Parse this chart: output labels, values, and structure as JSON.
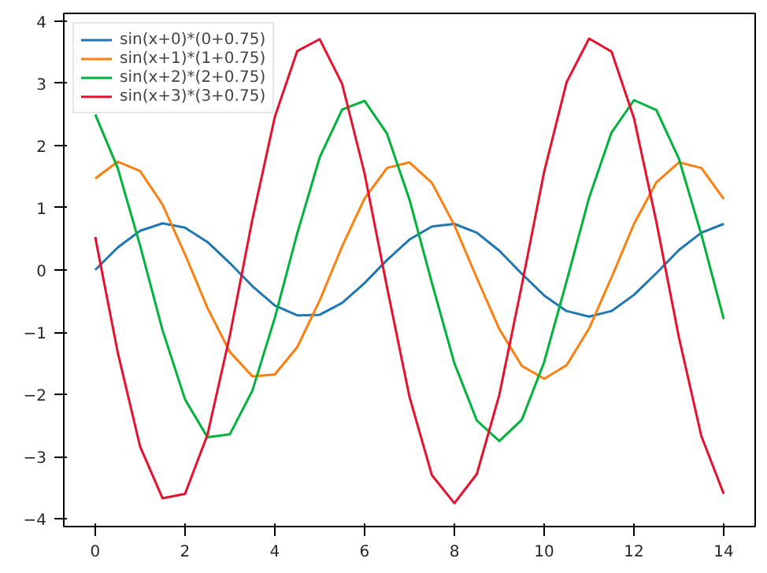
{
  "chart_data": {
    "type": "line",
    "x": [
      0,
      0.5,
      1,
      1.5,
      2,
      2.5,
      3,
      3.5,
      4,
      4.5,
      5,
      5.5,
      6,
      6.5,
      7,
      7.5,
      8,
      8.5,
      9,
      9.5,
      10,
      10.5,
      11,
      11.5,
      12,
      12.5,
      13,
      13.5,
      14
    ],
    "series": [
      {
        "name": "sin(x+0)*(0+0.75)",
        "color": "#1f77b4",
        "values": [
          0,
          0.36,
          0.63,
          0.75,
          0.68,
          0.45,
          0.11,
          -0.26,
          -0.57,
          -0.73,
          -0.72,
          -0.53,
          -0.21,
          0.16,
          0.49,
          0.7,
          0.74,
          0.6,
          0.31,
          -0.06,
          -0.41,
          -0.66,
          -0.75,
          -0.66,
          -0.4,
          -0.05,
          0.32,
          0.6,
          0.74
        ]
      },
      {
        "name": "sin(x+1)*(1+0.75)",
        "color": "#ff7f0e",
        "values": [
          1.47,
          1.74,
          1.59,
          1.05,
          0.25,
          -0.61,
          -1.32,
          -1.71,
          -1.68,
          -1.24,
          -0.49,
          0.38,
          1.15,
          1.64,
          1.73,
          1.4,
          0.72,
          -0.13,
          -0.95,
          -1.54,
          -1.75,
          -1.53,
          -0.94,
          -0.12,
          0.74,
          1.41,
          1.73,
          1.64,
          1.14
        ]
      },
      {
        "name": "sin(x+2)*(2+0.75)",
        "color": "#00b33c",
        "values": [
          2.5,
          1.64,
          0.39,
          -0.97,
          -2.08,
          -2.69,
          -2.64,
          -1.94,
          -0.77,
          0.59,
          1.81,
          2.58,
          2.72,
          2.19,
          1.13,
          -0.21,
          -1.5,
          -2.42,
          -2.75,
          -2.41,
          -1.48,
          -0.18,
          1.16,
          2.21,
          2.73,
          2.57,
          1.79,
          0.57,
          -0.79
        ]
      },
      {
        "name": "sin(x+3)*(3+0.75)",
        "color": "#e8112d",
        "values": [
          0.53,
          -1.32,
          -2.84,
          -3.67,
          -3.6,
          -2.65,
          -1.05,
          0.81,
          2.46,
          3.52,
          3.71,
          2.99,
          1.55,
          -0.28,
          -2.04,
          -3.3,
          -3.75,
          -3.28,
          -2.01,
          -0.25,
          1.58,
          3.02,
          3.72,
          3.51,
          2.44,
          0.77,
          -1.08,
          -2.67,
          -3.6
        ]
      }
    ],
    "xlim": [
      -0.7,
      14.7
    ],
    "ylim": [
      -4.125,
      4.125
    ],
    "xticks": [
      0,
      2,
      4,
      6,
      8,
      10,
      12,
      14
    ],
    "yticks": [
      -4,
      -3,
      -2,
      -1,
      0,
      1,
      2,
      3,
      4
    ],
    "grid": false,
    "legend": "top left",
    "line_style": "solid"
  }
}
